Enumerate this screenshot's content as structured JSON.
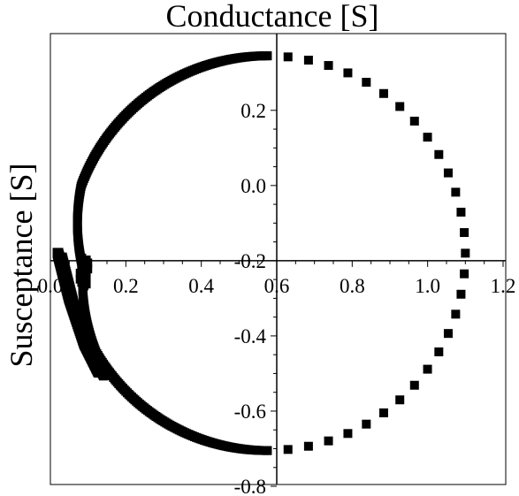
{
  "chart_data": {
    "type": "scatter",
    "title": "",
    "xlabel": "Conductance [S]",
    "ylabel": "Susceptance [S]",
    "xlim": [
      0.0,
      1.2
    ],
    "ylim": [
      -0.8,
      0.35
    ],
    "x_ticks": [
      0.0,
      0.2,
      0.4,
      0.6,
      0.8,
      1.0,
      1.2
    ],
    "x_tick_labels": [
      "0.0",
      "0.2",
      "0.4",
      "0.6",
      "0.8",
      "1.0",
      "1.2"
    ],
    "y_ticks": [
      -0.8,
      -0.6,
      -0.4,
      -0.2,
      0.0,
      0.2
    ],
    "y_tick_labels": [
      "-0.8",
      "-0.6",
      "-0.4",
      "-0.2",
      "0.0",
      "0.2"
    ],
    "axes_cross_at": {
      "x": 0.6,
      "y": -0.2
    },
    "grid": false,
    "legend": "none",
    "marker": "square",
    "marker_color": "#000000",
    "circle_locus": {
      "center_g": 0.575,
      "center_b": -0.18,
      "radius": 0.525
    },
    "clusters": [
      {
        "g": 0.083,
        "b": -0.225
      },
      {
        "g": 0.089,
        "b": -0.235
      },
      {
        "g": 0.095,
        "b": -0.23
      }
    ],
    "lower_trail": [
      {
        "g": 0.02,
        "b": -0.18
      },
      {
        "g": 0.05,
        "b": -0.3
      },
      {
        "g": 0.09,
        "b": -0.42
      },
      {
        "g": 0.13,
        "b": -0.5
      }
    ]
  }
}
